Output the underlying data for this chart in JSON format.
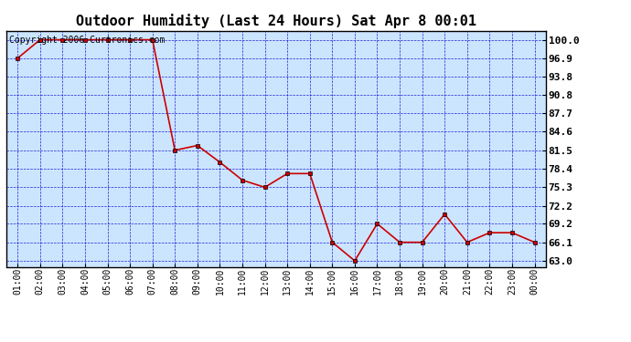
{
  "title": "Outdoor Humidity (Last 24 Hours) Sat Apr 8 00:01",
  "copyright": "Copyright 2006 Curtronics.com",
  "x_labels": [
    "01:00",
    "02:00",
    "03:00",
    "04:00",
    "05:00",
    "06:00",
    "07:00",
    "08:00",
    "09:00",
    "10:00",
    "11:00",
    "12:00",
    "13:00",
    "14:00",
    "15:00",
    "16:00",
    "17:00",
    "18:00",
    "19:00",
    "20:00",
    "21:00",
    "22:00",
    "23:00",
    "00:00"
  ],
  "x_values": [
    1,
    2,
    3,
    4,
    5,
    6,
    7,
    8,
    9,
    10,
    11,
    12,
    13,
    14,
    15,
    16,
    17,
    18,
    19,
    20,
    21,
    22,
    23,
    24
  ],
  "y_values": [
    96.9,
    100.0,
    100.0,
    100.0,
    100.0,
    100.0,
    100.0,
    81.5,
    82.3,
    79.5,
    76.5,
    75.3,
    77.6,
    77.6,
    66.1,
    63.0,
    69.2,
    66.1,
    66.1,
    70.8,
    66.1,
    67.7,
    67.7,
    66.1
  ],
  "y_ticks": [
    63.0,
    66.1,
    69.2,
    72.2,
    75.3,
    78.4,
    81.5,
    84.6,
    87.7,
    90.8,
    93.8,
    96.9,
    100.0
  ],
  "ylim": [
    62.0,
    101.5
  ],
  "line_color": "#cc0000",
  "marker": "s",
  "marker_size": 3,
  "bg_color": "#cce5ff",
  "plot_bg": "#ffffff",
  "grid_color": "#0000cc",
  "title_fontsize": 11,
  "copyright_fontsize": 7,
  "tick_fontsize": 7,
  "ytick_fontsize": 8
}
